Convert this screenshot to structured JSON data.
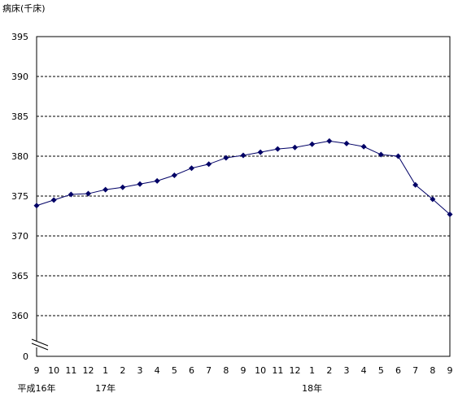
{
  "chart_data": {
    "type": "line",
    "ylabel": "病床(千床)",
    "ylim": [
      360,
      395
    ],
    "y_ticks": [
      395,
      390,
      385,
      380,
      375,
      370,
      365,
      360
    ],
    "y_zero_label": "0",
    "y_axis_break": true,
    "grid": "horizontal dashed",
    "categories": [
      "9",
      "10",
      "11",
      "12",
      "1",
      "2",
      "3",
      "4",
      "5",
      "6",
      "7",
      "8",
      "9",
      "10",
      "11",
      "12",
      "1",
      "2",
      "3",
      "4",
      "5",
      "6",
      "7",
      "8",
      "9"
    ],
    "year_labels": [
      {
        "label": "平成16年",
        "category_index": 0
      },
      {
        "label": "17年",
        "category_index": 4
      },
      {
        "label": "18年",
        "category_index": 16
      }
    ],
    "series": [
      {
        "color": "#000066",
        "marker": "diamond",
        "values": [
          373.8,
          374.5,
          375.2,
          375.3,
          375.8,
          376.1,
          376.5,
          376.9,
          377.6,
          378.5,
          379.0,
          379.8,
          380.1,
          380.5,
          380.9,
          381.1,
          381.5,
          381.9,
          381.6,
          381.2,
          380.2,
          380.0,
          376.4,
          374.6,
          372.7
        ]
      }
    ]
  }
}
